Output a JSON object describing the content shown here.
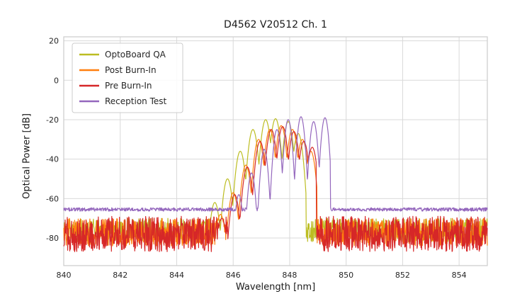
{
  "figure": {
    "title": "D4562 V20512 Ch. 1",
    "xlabel": "Wavelength [nm]",
    "ylabel": "Optical Power [dB]"
  },
  "chart_data": {
    "type": "line",
    "title": "D4562 V20512 Ch. 1",
    "xlabel": "Wavelength [nm]",
    "ylabel": "Optical Power [dB]",
    "xlim": [
      840,
      855
    ],
    "ylim": [
      -94,
      22
    ],
    "x_ticks": [
      840,
      842,
      844,
      846,
      848,
      850,
      852,
      854
    ],
    "y_ticks": [
      20,
      0,
      -20,
      -40,
      -60,
      -80
    ],
    "grid": true,
    "legend_position": "upper-left",
    "sample_step_nm": 0.0125,
    "colors": {
      "grid": "#d9d9d9",
      "frame": "#cccccc",
      "text": "#262626"
    },
    "series": [
      {
        "name": "OptoBoard QA",
        "color": "#bcbd22",
        "noise_floor_db": -76,
        "noise_amp_db": 6,
        "signal_range_nm": [
          844.8,
          848.58
        ],
        "mode_sigma_nm": 0.05,
        "modes_nm_db": [
          [
            844.95,
            -72
          ],
          [
            845.35,
            -62
          ],
          [
            845.8,
            -50
          ],
          [
            846.25,
            -36
          ],
          [
            846.7,
            -25
          ],
          [
            847.15,
            -20
          ],
          [
            847.5,
            -19.5
          ],
          [
            847.95,
            -21
          ],
          [
            848.3,
            -27
          ]
        ]
      },
      {
        "name": "Post Burn-In",
        "color": "#ff7f0e",
        "noise_floor_db": -77,
        "noise_amp_db": 7,
        "signal_range_nm": [
          845.3,
          848.97
        ],
        "mode_sigma_nm": 0.05,
        "modes_nm_db": [
          [
            845.55,
            -68
          ],
          [
            846.0,
            -57
          ],
          [
            846.45,
            -43
          ],
          [
            846.9,
            -30
          ],
          [
            847.3,
            -25
          ],
          [
            847.7,
            -23
          ],
          [
            848.1,
            -25
          ],
          [
            848.45,
            -30
          ],
          [
            848.75,
            -36
          ]
        ]
      },
      {
        "name": "Pre Burn-In",
        "color": "#d62728",
        "noise_floor_db": -78,
        "noise_amp_db": 9,
        "signal_range_nm": [
          845.35,
          848.95
        ],
        "mode_sigma_nm": 0.05,
        "modes_nm_db": [
          [
            845.6,
            -70
          ],
          [
            846.05,
            -58
          ],
          [
            846.5,
            -44
          ],
          [
            846.95,
            -31
          ],
          [
            847.35,
            -25
          ],
          [
            847.75,
            -23.5
          ],
          [
            848.15,
            -26
          ],
          [
            848.5,
            -31
          ],
          [
            848.8,
            -34
          ]
        ]
      },
      {
        "name": "Reception Test",
        "color": "#9467bd",
        "noise_floor_db": -65.5,
        "noise_amp_db": 0.9,
        "signal_range_nm": [
          845.9,
          849.45
        ],
        "mode_sigma_nm": 0.04,
        "modes_nm_db": [
          [
            846.2,
            -58
          ],
          [
            846.65,
            -47
          ],
          [
            847.1,
            -35
          ],
          [
            847.55,
            -25
          ],
          [
            847.95,
            -20
          ],
          [
            848.4,
            -18.5
          ],
          [
            848.85,
            -21
          ],
          [
            849.25,
            -19
          ]
        ]
      }
    ]
  }
}
